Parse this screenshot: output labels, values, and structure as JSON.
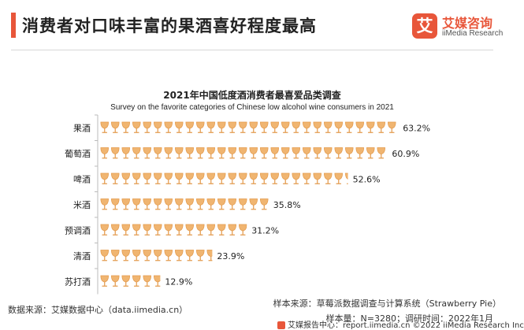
{
  "header": {
    "title": "消费者对口味丰富的果酒喜好程度最高",
    "accent_color": "#e8563a"
  },
  "logo": {
    "mark_char": "艾",
    "cn": "艾媒咨询",
    "en": "iiMedia Research",
    "color": "#e8563a"
  },
  "chart_data": {
    "type": "bar",
    "orientation": "horizontal",
    "title": "2021年中国低度酒消费者最喜爱品类调查",
    "subtitle": "Survey on the favorite categories of Chinese low alcohol wine consumers in 2021",
    "categories": [
      "果酒",
      "葡萄酒",
      "啤酒",
      "米酒",
      "预调酒",
      "清酒",
      "苏打酒"
    ],
    "values": [
      63.2,
      60.9,
      52.6,
      35.8,
      31.2,
      23.9,
      12.9
    ],
    "value_labels": [
      "63.2%",
      "60.9%",
      "52.6%",
      "35.8%",
      "31.2%",
      "23.9%",
      "12.9%"
    ],
    "unit": "%",
    "mark_icon": "wine-glass-icon",
    "mark_color": "#f0b571",
    "grid": false
  },
  "footer": {
    "source": "数据来源：艾媒数据中心（data.iimedia.cn）",
    "sample_source": "样本来源：草莓派数据调查与计算系统（Strawberry Pie）",
    "sample_size": "样本量：N=3280；调研时间：2022年1月",
    "report": "艾媒报告中心：report.iimedia.cn  ©2022  iiMedia Research Inc"
  }
}
